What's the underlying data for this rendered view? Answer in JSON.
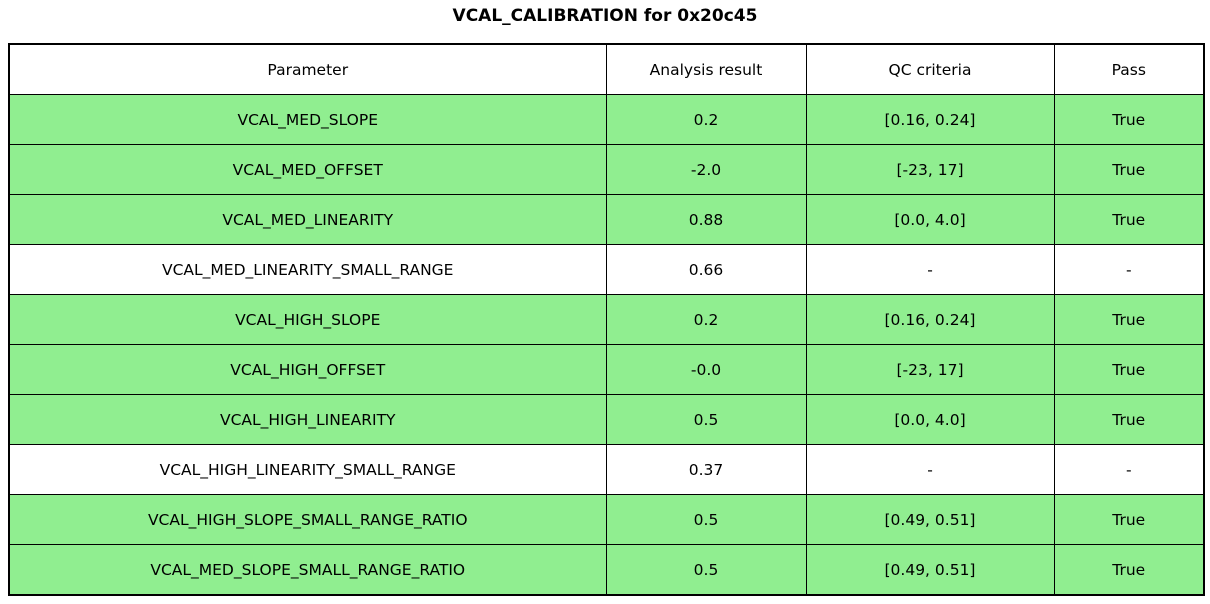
{
  "title": "VCAL_CALIBRATION for 0x20c45",
  "colors": {
    "pass_row_bg": "#90EE90",
    "header_bg": "#ffffff",
    "border": "#000000",
    "text": "#000000"
  },
  "chart_data": {
    "type": "table",
    "title": "VCAL_CALIBRATION for 0x20c45",
    "columns": [
      "Parameter",
      "Analysis result",
      "QC criteria",
      "Pass"
    ],
    "rows": [
      {
        "cells": [
          "VCAL_MED_SLOPE",
          "0.2",
          "[0.16, 0.24]",
          "True"
        ],
        "highlighted": true
      },
      {
        "cells": [
          "VCAL_MED_OFFSET",
          "-2.0",
          "[-23, 17]",
          "True"
        ],
        "highlighted": true
      },
      {
        "cells": [
          "VCAL_MED_LINEARITY",
          "0.88",
          "[0.0, 4.0]",
          "True"
        ],
        "highlighted": true
      },
      {
        "cells": [
          "VCAL_MED_LINEARITY_SMALL_RANGE",
          "0.66",
          "-",
          "-"
        ],
        "highlighted": false
      },
      {
        "cells": [
          "VCAL_HIGH_SLOPE",
          "0.2",
          "[0.16, 0.24]",
          "True"
        ],
        "highlighted": true
      },
      {
        "cells": [
          "VCAL_HIGH_OFFSET",
          "-0.0",
          "[-23, 17]",
          "True"
        ],
        "highlighted": true
      },
      {
        "cells": [
          "VCAL_HIGH_LINEARITY",
          "0.5",
          "[0.0, 4.0]",
          "True"
        ],
        "highlighted": true
      },
      {
        "cells": [
          "VCAL_HIGH_LINEARITY_SMALL_RANGE",
          "0.37",
          "-",
          "-"
        ],
        "highlighted": false
      },
      {
        "cells": [
          "VCAL_HIGH_SLOPE_SMALL_RANGE_RATIO",
          "0.5",
          "[0.49, 0.51]",
          "True"
        ],
        "highlighted": true
      },
      {
        "cells": [
          "VCAL_MED_SLOPE_SMALL_RANGE_RATIO",
          "0.5",
          "[0.49, 0.51]",
          "True"
        ],
        "highlighted": true
      }
    ]
  }
}
